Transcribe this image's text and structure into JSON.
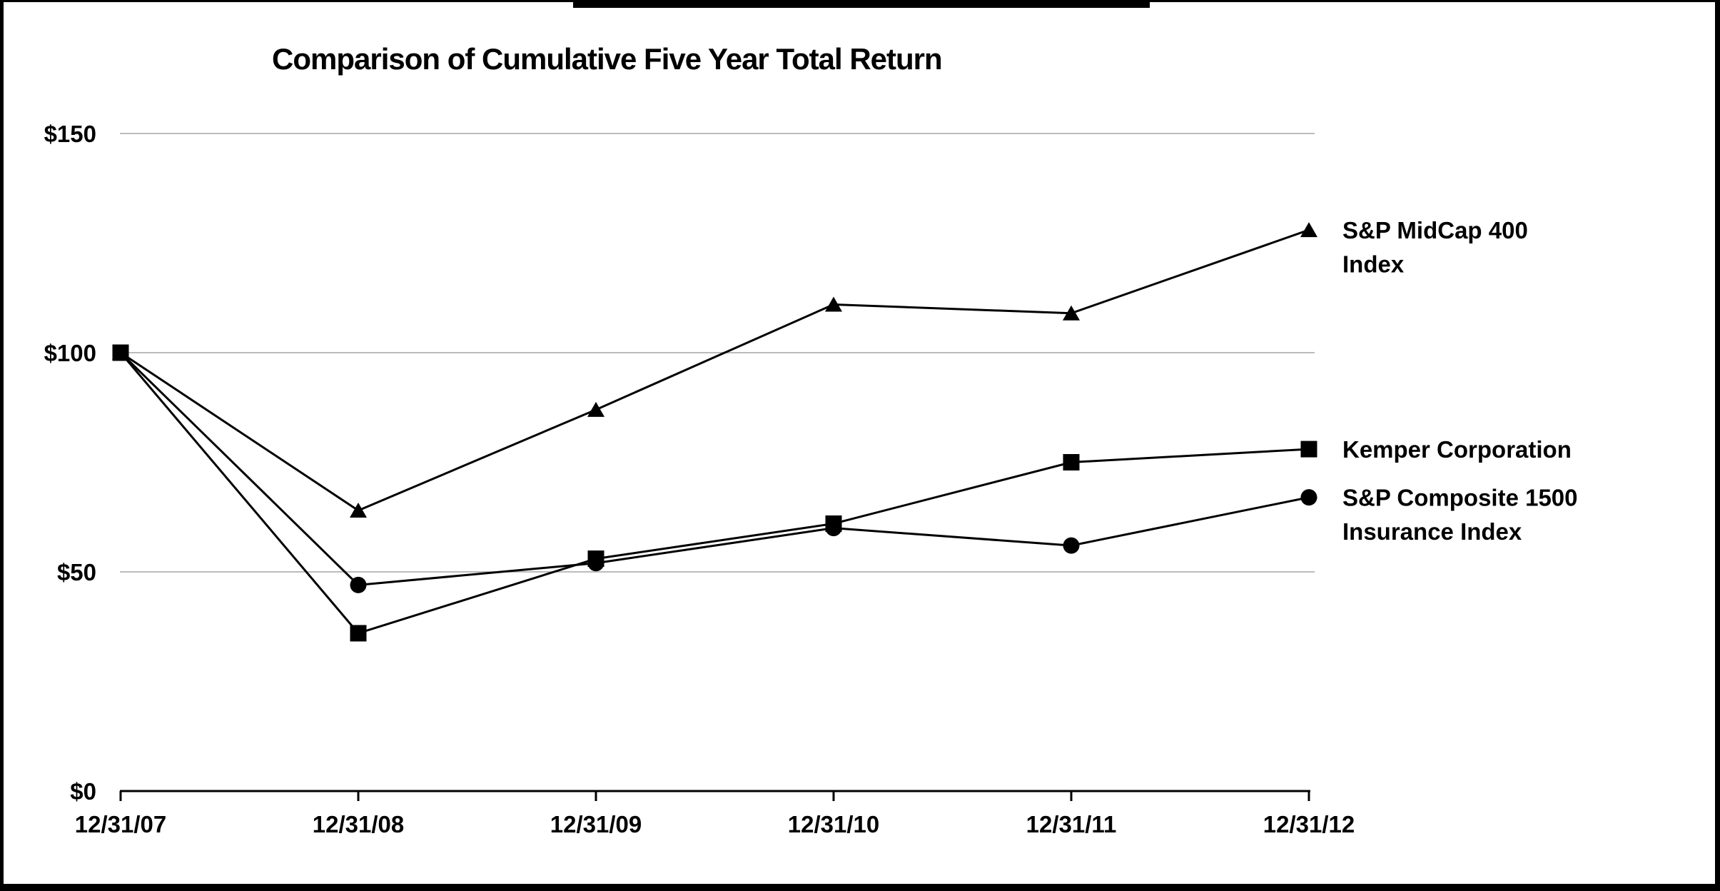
{
  "chart_data": {
    "type": "line",
    "title": "Comparison of Cumulative Five Year Total Return",
    "categories": [
      "12/31/07",
      "12/31/08",
      "12/31/09",
      "12/31/10",
      "12/31/11",
      "12/31/12"
    ],
    "series": [
      {
        "name": "S&P MidCap 400 Index",
        "legend_lines": [
          "S&P MidCap 400",
          "Index"
        ],
        "marker": "triangle",
        "values": [
          100,
          64,
          87,
          111,
          109,
          128
        ]
      },
      {
        "name": "S&P Composite 1500 Insurance Index",
        "legend_lines": [
          "S&P Composite 1500",
          "Insurance Index"
        ],
        "marker": "circle",
        "values": [
          100,
          47,
          52,
          60,
          56,
          67
        ]
      },
      {
        "name": "Kemper Corporation",
        "legend_lines": [
          "Kemper Corporation"
        ],
        "marker": "square",
        "values": [
          100,
          36,
          53,
          61,
          75,
          78
        ]
      }
    ],
    "y_ticks": [
      {
        "label": "$0",
        "value": 0
      },
      {
        "label": "$50",
        "value": 50
      },
      {
        "label": "$100",
        "value": 100
      },
      {
        "label": "$150",
        "value": 150
      }
    ],
    "ylim": [
      0,
      150
    ],
    "grid": "horizontal",
    "legend_position": "right",
    "colors": {
      "line": "#000000",
      "grid": "#a6a6a6",
      "text": "#000000",
      "background": "#ffffff"
    }
  }
}
